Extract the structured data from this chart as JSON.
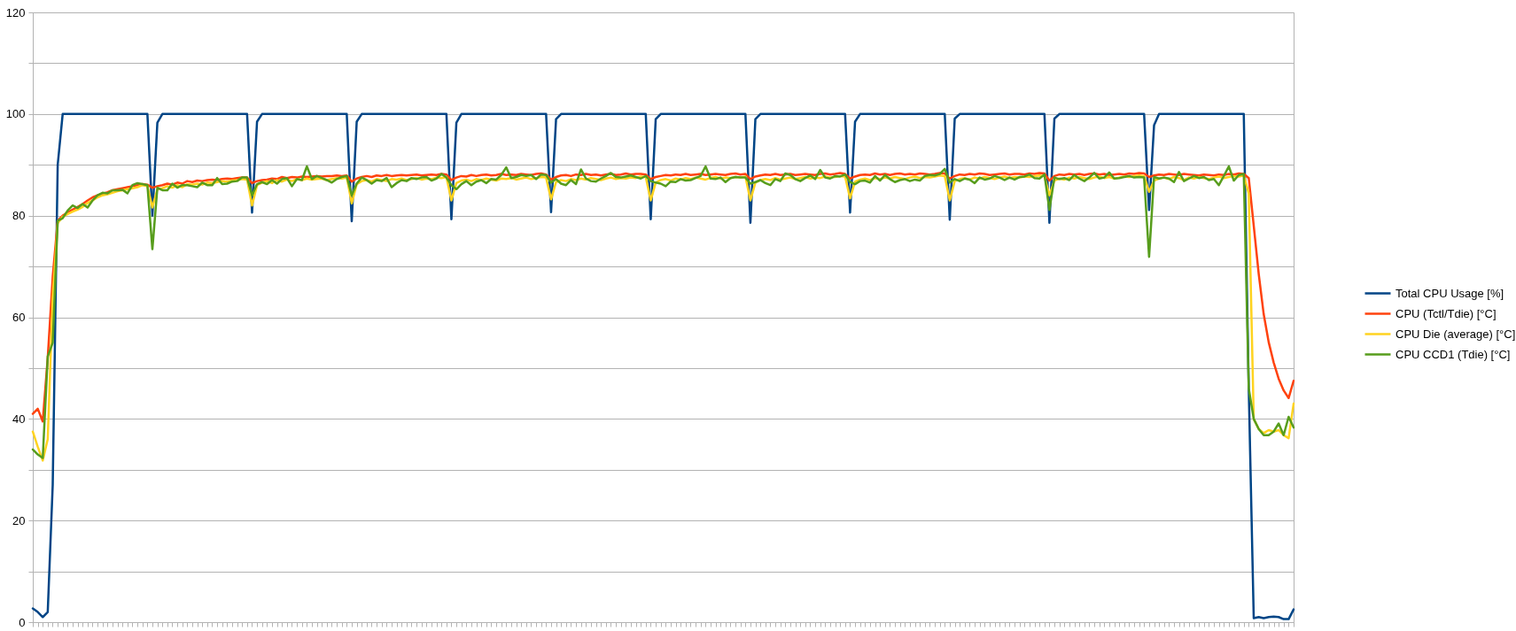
{
  "chart_data": {
    "type": "line",
    "categories": [
      null,
      null,
      null,
      null,
      null,
      null,
      null,
      null,
      null,
      null,
      null,
      null,
      null,
      null,
      null,
      null,
      null,
      null,
      null,
      null,
      null,
      null,
      null,
      null,
      null,
      null,
      null,
      null,
      null,
      null,
      null,
      null,
      null,
      null,
      null,
      null,
      null,
      null,
      null,
      null,
      null,
      null,
      null,
      null,
      null,
      null,
      null,
      null,
      null,
      null,
      null,
      null,
      null,
      null,
      null,
      null,
      null,
      null,
      null,
      null,
      null,
      null,
      null,
      null,
      null,
      null,
      null,
      null,
      null,
      null,
      null,
      null,
      null,
      null,
      null,
      null,
      null,
      null,
      null,
      null,
      null,
      null,
      null,
      null,
      null,
      null,
      null,
      null,
      null,
      null,
      null,
      null,
      null,
      null,
      null,
      null,
      null,
      null,
      null,
      null,
      null,
      null,
      null,
      null,
      null,
      null,
      null,
      null,
      null,
      null,
      null,
      null,
      null,
      null,
      null,
      null,
      null,
      null,
      null,
      null,
      null,
      null,
      null,
      null,
      null,
      null,
      null,
      null,
      null,
      null,
      null,
      null,
      null,
      null,
      null,
      null,
      null,
      null,
      null,
      null,
      null,
      null,
      null,
      null,
      null,
      null,
      null,
      null,
      null,
      null,
      null,
      null,
      null,
      null,
      null,
      null,
      null,
      null,
      null,
      null,
      null,
      null,
      null,
      null,
      null,
      null,
      null,
      null,
      null,
      null,
      null,
      null,
      null,
      null,
      null,
      null,
      null,
      null,
      null,
      null,
      null,
      null,
      null,
      null,
      null,
      null,
      null,
      null,
      null,
      null,
      null,
      null,
      null,
      null,
      null,
      null,
      null,
      null,
      null,
      null,
      null,
      null,
      null,
      null,
      null,
      null,
      null,
      null,
      null,
      null,
      null,
      null,
      null,
      null,
      null,
      null,
      null,
      null,
      null,
      null,
      null,
      null,
      null,
      null,
      null,
      null,
      null,
      null,
      null,
      null,
      null,
      null,
      null,
      null,
      null,
      null,
      null,
      null,
      null,
      null,
      null,
      null,
      null,
      null,
      null,
      null,
      null,
      null,
      null,
      null,
      null,
      null,
      null,
      null
    ],
    "series": [
      {
        "name": "Total CPU Usage [%]",
        "color": "#004586",
        "values": [
          2.7,
          2.0,
          1.0,
          2.0,
          27,
          90,
          100,
          100,
          100,
          100,
          100,
          100,
          100,
          100,
          100,
          100,
          100,
          100,
          100,
          100,
          100,
          100,
          100,
          100,
          80.0,
          98.3,
          100,
          100,
          100,
          100,
          100,
          100,
          100,
          100,
          100,
          100,
          100,
          100,
          100,
          100,
          100,
          100,
          100,
          100,
          80.6,
          98.5,
          100,
          100,
          100,
          100,
          100,
          100,
          100,
          100,
          100,
          100,
          100,
          100,
          100,
          100,
          100,
          100,
          100,
          100,
          78.9,
          98.5,
          100,
          100,
          100,
          100,
          100,
          100,
          100,
          100,
          100,
          100,
          100,
          100,
          100,
          100,
          100,
          100,
          100,
          100,
          79.3,
          98.3,
          100,
          100,
          100,
          100,
          100,
          100,
          100,
          100,
          100,
          100,
          100,
          100,
          100,
          100,
          100,
          100,
          100,
          100,
          80.7,
          99,
          100,
          100,
          100,
          100,
          100,
          100,
          100,
          100,
          100,
          100,
          100,
          100,
          100,
          100,
          100,
          100,
          100,
          100,
          79.3,
          99,
          100,
          100,
          100,
          100,
          100,
          100,
          100,
          100,
          100,
          100,
          100,
          100,
          100,
          100,
          100,
          100,
          100,
          100,
          78.6,
          99,
          100,
          100,
          100,
          100,
          100,
          100,
          100,
          100,
          100,
          100,
          100,
          100,
          100,
          100,
          100,
          100,
          100,
          100,
          80.6,
          98.5,
          100,
          100,
          100,
          100,
          100,
          100,
          100,
          100,
          100,
          100,
          100,
          100,
          100,
          100,
          100,
          100,
          100,
          100,
          79.2,
          99.1,
          100,
          100,
          100,
          100,
          100,
          100,
          100,
          100,
          100,
          100,
          100,
          100,
          100,
          100,
          100,
          100,
          100,
          100,
          78.6,
          99.1,
          100,
          100,
          100,
          100,
          100,
          100,
          100,
          100,
          100,
          100,
          100,
          100,
          100,
          100,
          100,
          100,
          100,
          100,
          81.1,
          97.8,
          100,
          100,
          100,
          100,
          100,
          100,
          100,
          100,
          100,
          100,
          100,
          100,
          100,
          100,
          100,
          100,
          100,
          100,
          46,
          0.8,
          1.0,
          0.8,
          1.0,
          1.1,
          1.0,
          0.6,
          0.6,
          2.5
        ]
      },
      {
        "name": "CPU (Tctl/Tdie) [°C]",
        "color": "#ff420e",
        "values": [
          41,
          42,
          39.5,
          52,
          68,
          79,
          80,
          80.6,
          81.2,
          81.7,
          82.3,
          83,
          83.6,
          84,
          84.3,
          84.6,
          85,
          85.2,
          85.4,
          85.6,
          85.8,
          86,
          86.2,
          86.1,
          85.5,
          85.8,
          86,
          86.3,
          86.1,
          86.5,
          86.3,
          86.8,
          86.6,
          86.9,
          86.8,
          87,
          87.1,
          87,
          87.2,
          87.3,
          87.2,
          87.4,
          87.5,
          87.5,
          86.4,
          86.8,
          87,
          87.1,
          87.3,
          87.2,
          87.6,
          87.4,
          87.6,
          87.5,
          87.7,
          87.6,
          87.7,
          87.8,
          87.7,
          87.8,
          87.8,
          87.9,
          87.8,
          87.9,
          86.7,
          87.3,
          87.6,
          87.8,
          87.6,
          87.9,
          87.8,
          88,
          87.8,
          87.9,
          88,
          87.9,
          88,
          88.1,
          87.9,
          88,
          88.1,
          88,
          88.2,
          88.1,
          87,
          87.5,
          87.8,
          87.7,
          88,
          87.8,
          88,
          88.1,
          87.9,
          88,
          88.2,
          88,
          88.1,
          88,
          88.2,
          88.1,
          88,
          88.2,
          88.3,
          88.1,
          87.1,
          87.6,
          87.9,
          88,
          87.8,
          88.1,
          88,
          88.2,
          88,
          88.1,
          87.9,
          88.1,
          88.2,
          88,
          88.1,
          88.3,
          88.1,
          88.2,
          88.2,
          88.1,
          87.2,
          87.6,
          87.8,
          88,
          87.9,
          88.1,
          88,
          88.2,
          88,
          88.1,
          88.2,
          88,
          88.1,
          88.2,
          88.1,
          88,
          88.2,
          88.3,
          88.1,
          88.2,
          87.2,
          87.7,
          87.9,
          88.1,
          88,
          88.2,
          88,
          88.1,
          88.2,
          88,
          88.1,
          88.2,
          88.1,
          88,
          88.2,
          88.3,
          88.1,
          88.2,
          88.4,
          88.2,
          87.3,
          87.7,
          88,
          88.1,
          88,
          88.3,
          88.1,
          88.2,
          88,
          88.2,
          88.3,
          88.1,
          88.2,
          88.1,
          88.3,
          88.2,
          88.1,
          88.2,
          88.4,
          88.3,
          87.3,
          87.8,
          88.1,
          88,
          88.2,
          88.1,
          88.3,
          88.2,
          88,
          88.1,
          88.2,
          88.3,
          88.1,
          88.2,
          88.2,
          88.1,
          88.3,
          88.2,
          88.4,
          88.3,
          86.9,
          87.8,
          88.1,
          88,
          88.2,
          88.1,
          88.2,
          88,
          88.2,
          88.3,
          88.1,
          88.2,
          88,
          88.1,
          88.2,
          88.1,
          88.3,
          88.2,
          88.4,
          88.3,
          87.6,
          87.9,
          88.1,
          88,
          88.2,
          88.1,
          88,
          88.2,
          88.1,
          88,
          87.9,
          88.1,
          88,
          87.9,
          88.1,
          88,
          88.2,
          88.1,
          88.3,
          88.2,
          87.4,
          78,
          68.5,
          60.6,
          55.1,
          51.1,
          47.9,
          45.6,
          44.1,
          47.5
        ]
      },
      {
        "name": "CPU Die (average) [°C]",
        "color": "#ffd320",
        "values": [
          37.5,
          34.5,
          31.8,
          36,
          64,
          78.5,
          79.8,
          80.3,
          80.8,
          81.2,
          81.7,
          82.5,
          83,
          83.6,
          84,
          84.2,
          84.5,
          84.8,
          85,
          85.2,
          85.4,
          85.6,
          86,
          85.8,
          81.6,
          85.2,
          85.4,
          85.8,
          85.5,
          86,
          85.6,
          86.2,
          86.1,
          86.3,
          86.1,
          86.5,
          86.4,
          86.6,
          86.8,
          86.7,
          86.9,
          87,
          87.2,
          87.1,
          82,
          86,
          86.5,
          86.8,
          86.4,
          87,
          86.7,
          87.1,
          86.8,
          87.2,
          87,
          87.3,
          87.1,
          87.2,
          87.3,
          87,
          87.2,
          87.4,
          87.3,
          87.5,
          82.4,
          86.2,
          86.8,
          87,
          86.7,
          87.2,
          87,
          86.8,
          87.2,
          87.1,
          87.3,
          87,
          87.2,
          87.4,
          87.1,
          87.3,
          87.2,
          87.5,
          87.4,
          87.6,
          83,
          86.4,
          86.9,
          87.1,
          86.8,
          87.2,
          87,
          87.3,
          87.1,
          86.9,
          87.3,
          87.2,
          87.4,
          87.1,
          87.3,
          87.5,
          87.2,
          87.4,
          87.6,
          87.5,
          83.2,
          86.6,
          87,
          86.8,
          87.2,
          87,
          87.3,
          87.1,
          87.4,
          87.2,
          87,
          87.3,
          87.5,
          87.2,
          87.4,
          87.3,
          87.5,
          87.4,
          87.7,
          87.6,
          83,
          86.5,
          87,
          87.2,
          86.9,
          87.3,
          87.1,
          87.4,
          87.2,
          87.5,
          87.3,
          87.1,
          87.4,
          87.6,
          87.3,
          87.5,
          87.4,
          87.6,
          87.5,
          87.7,
          83,
          86.5,
          87,
          87.2,
          87,
          87.4,
          87.1,
          87.3,
          87.5,
          87.2,
          87.4,
          87.6,
          87.3,
          87.5,
          87.4,
          87.7,
          87.5,
          87.6,
          87.8,
          87.7,
          83.4,
          86.7,
          87.1,
          87.3,
          87,
          87.4,
          87.2,
          87.5,
          87.3,
          87.6,
          87.4,
          87.2,
          87.5,
          87.7,
          87.4,
          87.6,
          87.5,
          87.7,
          87.9,
          87.8,
          83,
          86.8,
          87.2,
          87.4,
          87.1,
          87.5,
          87.3,
          87.6,
          87.4,
          87.2,
          87.5,
          87.7,
          87.4,
          87.6,
          87.5,
          87.7,
          87.6,
          87.8,
          87.9,
          87.8,
          84,
          86.9,
          87.3,
          87.1,
          87.5,
          87.3,
          87.6,
          87.4,
          87.2,
          87.5,
          87.7,
          87.4,
          87.6,
          87.3,
          87.5,
          87.7,
          87.6,
          87.8,
          87.9,
          87.8,
          84.7,
          86.9,
          87.3,
          87.5,
          87.2,
          87.6,
          87.4,
          87,
          87.5,
          87.3,
          87.6,
          87.4,
          87.2,
          87.5,
          87.7,
          87.4,
          87.6,
          87.8,
          87.7,
          87.9,
          84.4,
          40,
          38,
          37.2,
          37.8,
          37.5,
          37.8,
          36.8,
          36.2,
          43
        ]
      },
      {
        "name": "CPU CCD1 (Tdie) [°C]",
        "color": "#579d1c",
        "values": [
          34,
          33,
          32.3,
          52.3,
          55,
          79,
          79.5,
          81,
          82,
          81.5,
          82.3,
          81.6,
          83,
          84,
          84.5,
          84.4,
          85,
          85,
          85.1,
          84.4,
          86,
          86.4,
          86.2,
          86,
          73.4,
          85.5,
          85,
          85,
          86.3,
          85.5,
          86,
          86,
          85.8,
          85.6,
          86.5,
          86,
          86,
          87.4,
          86.2,
          86.3,
          86.7,
          86.8,
          87.5,
          87.5,
          84,
          86.2,
          86.6,
          86.2,
          87,
          86.3,
          87.2,
          87.4,
          85.8,
          87.2,
          87,
          89.7,
          87.2,
          87.8,
          87.4,
          87,
          86.5,
          87.2,
          87.6,
          87.8,
          84,
          86.3,
          87.5,
          87,
          86.3,
          87,
          86.8,
          87.4,
          85.6,
          86.4,
          87,
          86.8,
          87.4,
          87.2,
          87.5,
          87.6,
          86.9,
          87.3,
          88.2,
          87.5,
          86,
          85.2,
          86.2,
          86.8,
          86,
          86.7,
          87,
          86.4,
          87.2,
          87.1,
          88,
          89.5,
          87.4,
          87.6,
          88,
          87.8,
          88,
          87.2,
          88.1,
          88,
          86.5,
          87.2,
          86.3,
          86,
          87,
          86.2,
          89.1,
          87.3,
          86.8,
          86.7,
          87.3,
          87.8,
          88.4,
          87.6,
          87.5,
          87.7,
          87.9,
          87.6,
          87.3,
          87.8,
          86.8,
          86.5,
          86.3,
          85.8,
          86.7,
          86.6,
          87.2,
          86.9,
          87,
          87.4,
          87.8,
          89.7,
          87.3,
          87.2,
          87.5,
          86.6,
          87.4,
          87.6,
          87.5,
          87.5,
          86.3,
          86.6,
          87,
          86.4,
          86,
          87.2,
          86.8,
          88.3,
          88,
          87.2,
          86.8,
          87.4,
          87.9,
          87.2,
          89,
          87.5,
          87.3,
          87.8,
          87.7,
          88.1,
          86.6,
          86.2,
          86.8,
          86.9,
          86.5,
          87.8,
          86.9,
          88,
          87.2,
          86.6,
          87,
          87.2,
          86.8,
          87.1,
          86.9,
          87.8,
          88,
          87.9,
          88.2,
          89.2,
          86.5,
          87.2,
          86.8,
          87.3,
          87.1,
          86.4,
          87.5,
          87.1,
          87.3,
          87.8,
          87.5,
          87,
          87.5,
          87.1,
          87.6,
          87.7,
          88.1,
          87.4,
          87.3,
          88.1,
          81.1,
          87.5,
          87.2,
          87.4,
          87,
          88,
          87.3,
          86.8,
          87.5,
          88.4,
          87.3,
          87.5,
          88.5,
          87.3,
          87.4,
          87.6,
          87.8,
          87.5,
          87.6,
          87.5,
          71.9,
          87.6,
          87.3,
          87.5,
          87.3,
          86.6,
          88.6,
          86.8,
          87.3,
          87.8,
          87.4,
          87.6,
          87,
          87.2,
          86,
          87.8,
          89.7,
          86.9,
          88,
          88.2,
          46,
          40,
          38,
          36.8,
          36.8,
          37.5,
          39.1,
          36.8,
          40.4,
          38.3
        ]
      }
    ],
    "ylim": [
      0,
      120
    ],
    "yticks": [
      0,
      {
        "value": 10,
        "label": null
      },
      20,
      {
        "value": 30,
        "label": null
      },
      40,
      {
        "value": 50,
        "label": null
      },
      60,
      {
        "value": 70,
        "label": null
      },
      80,
      {
        "value": 90,
        "label": null
      },
      100,
      {
        "value": 110,
        "label": null
      },
      120
    ],
    "grid": "y",
    "legend": "right",
    "tick_labels": "y"
  }
}
